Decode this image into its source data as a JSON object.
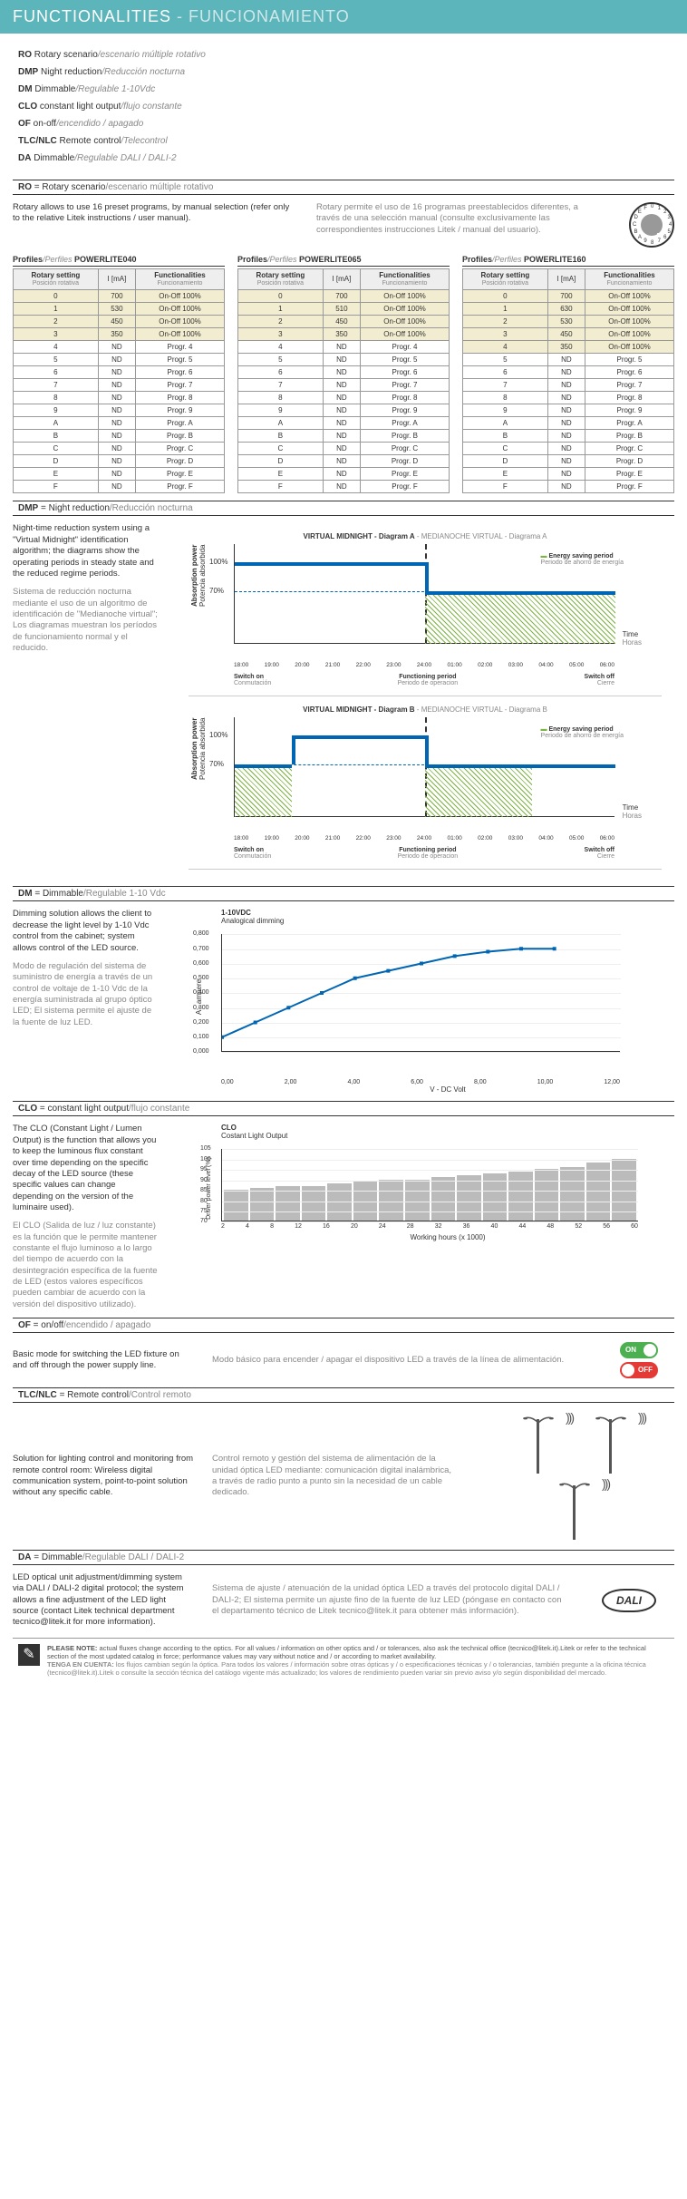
{
  "header": {
    "en": "FUNCTIONALITIES",
    "es": "- FUNCIONAMIENTO"
  },
  "funcList": [
    {
      "code": "RO",
      "en": "Rotary scenario",
      "es": "/escenario múltiple rotativo"
    },
    {
      "code": "DMP",
      "en": "Night reduction",
      "es": "/Reducción nocturna"
    },
    {
      "code": "DM",
      "en": "Dimmable",
      "es": "/Regulable 1-10Vdc"
    },
    {
      "code": "CLO",
      "en": "constant light output",
      "es": "/flujo constante"
    },
    {
      "code": "OF",
      "en": "on-off",
      "es": "/encendido / apagado"
    },
    {
      "code": "TLC/NLC",
      "en": "Remote control",
      "es": "/Telecontrol"
    },
    {
      "code": "DA",
      "en": "Dimmable",
      "es": "/Regulable DALI / DALI-2"
    }
  ],
  "sections": {
    "ro": {
      "code": "RO",
      "en": "= Rotary scenario",
      "es": "/escenario múltiple rotativo"
    },
    "dmp": {
      "code": "DMP",
      "en": "= Night reduction",
      "es": "/Reducción nocturna"
    },
    "dm": {
      "code": "DM",
      "en": "= Dimmable",
      "es": "/Regulable 1-10 Vdc"
    },
    "clo": {
      "code": "CLO",
      "en": "= constant light output",
      "es": "/flujo constante"
    },
    "of": {
      "code": "OF",
      "en": "= on/off",
      "es": "/encendido / apagado"
    },
    "tlc": {
      "code": "TLC/NLC",
      "en": "= Remote control",
      "es": "/Control remoto"
    },
    "da": {
      "code": "DA",
      "en": "= Dimmable",
      "es": "/Regulable DALI / DALI-2"
    }
  },
  "roDesc": {
    "en": "Rotary allows to use 16 preset programs, by manual selection (refer only to the relative Litek instructions / user manual).",
    "es": "Rotary permite el uso de 16 programas preestablecidos diferentes, a través de una selección manual (consulte exclusivamente las correspondientes instrucciones Litek / manual del usuario)."
  },
  "dialChars": [
    "0",
    "1",
    "2",
    "3",
    "4",
    "5",
    "6",
    "7",
    "8",
    "9",
    "A",
    "B",
    "C",
    "D",
    "E",
    "F"
  ],
  "tableHeaders": {
    "rotary": {
      "en": "Rotary setting",
      "es": "Posición rotativa"
    },
    "i": "I [mA]",
    "func": {
      "en": "Functionalities",
      "es": "Funcionamiento"
    }
  },
  "profileLabel": {
    "en": "Profiles",
    "es": "/Perfiles"
  },
  "tables": [
    {
      "name": "POWERLITE040",
      "rows": [
        [
          "0",
          "700",
          "On-Off 100%",
          true
        ],
        [
          "1",
          "530",
          "On-Off 100%",
          true
        ],
        [
          "2",
          "450",
          "On-Off 100%",
          true
        ],
        [
          "3",
          "350",
          "On-Off 100%",
          true
        ],
        [
          "4",
          "ND",
          "Progr. 4",
          false
        ],
        [
          "5",
          "ND",
          "Progr. 5",
          false
        ],
        [
          "6",
          "ND",
          "Progr. 6",
          false
        ],
        [
          "7",
          "ND",
          "Progr. 7",
          false
        ],
        [
          "8",
          "ND",
          "Progr. 8",
          false
        ],
        [
          "9",
          "ND",
          "Progr. 9",
          false
        ],
        [
          "A",
          "ND",
          "Progr. A",
          false
        ],
        [
          "B",
          "ND",
          "Progr. B",
          false
        ],
        [
          "C",
          "ND",
          "Progr. C",
          false
        ],
        [
          "D",
          "ND",
          "Progr. D",
          false
        ],
        [
          "E",
          "ND",
          "Progr. E",
          false
        ],
        [
          "F",
          "ND",
          "Progr. F",
          false
        ]
      ]
    },
    {
      "name": "POWERLITE065",
      "rows": [
        [
          "0",
          "700",
          "On-Off 100%",
          true
        ],
        [
          "1",
          "510",
          "On-Off 100%",
          true
        ],
        [
          "2",
          "450",
          "On-Off 100%",
          true
        ],
        [
          "3",
          "350",
          "On-Off 100%",
          true
        ],
        [
          "4",
          "ND",
          "Progr. 4",
          false
        ],
        [
          "5",
          "ND",
          "Progr. 5",
          false
        ],
        [
          "6",
          "ND",
          "Progr. 6",
          false
        ],
        [
          "7",
          "ND",
          "Progr. 7",
          false
        ],
        [
          "8",
          "ND",
          "Progr. 8",
          false
        ],
        [
          "9",
          "ND",
          "Progr. 9",
          false
        ],
        [
          "A",
          "ND",
          "Progr. A",
          false
        ],
        [
          "B",
          "ND",
          "Progr. B",
          false
        ],
        [
          "C",
          "ND",
          "Progr. C",
          false
        ],
        [
          "D",
          "ND",
          "Progr. D",
          false
        ],
        [
          "E",
          "ND",
          "Progr. E",
          false
        ],
        [
          "F",
          "ND",
          "Progr. F",
          false
        ]
      ]
    },
    {
      "name": "POWERLITE160",
      "rows": [
        [
          "0",
          "700",
          "On-Off 100%",
          true
        ],
        [
          "1",
          "630",
          "On-Off 100%",
          true
        ],
        [
          "2",
          "530",
          "On-Off 100%",
          true
        ],
        [
          "3",
          "450",
          "On-Off 100%",
          true
        ],
        [
          "4",
          "350",
          "On-Off 100%",
          true
        ],
        [
          "5",
          "ND",
          "Progr. 5",
          false
        ],
        [
          "6",
          "ND",
          "Progr. 6",
          false
        ],
        [
          "7",
          "ND",
          "Progr. 7",
          false
        ],
        [
          "8",
          "ND",
          "Progr. 8",
          false
        ],
        [
          "9",
          "ND",
          "Progr. 9",
          false
        ],
        [
          "A",
          "ND",
          "Progr. A",
          false
        ],
        [
          "B",
          "ND",
          "Progr. B",
          false
        ],
        [
          "C",
          "ND",
          "Progr. C",
          false
        ],
        [
          "D",
          "ND",
          "Progr. D",
          false
        ],
        [
          "E",
          "ND",
          "Progr. E",
          false
        ],
        [
          "F",
          "ND",
          "Progr. F",
          false
        ]
      ]
    }
  ],
  "dmpDesc": {
    "en": "Night-time reduction system using a \"Virtual Midnight\" identification algorithm; the diagrams show the operating periods in steady state and the reduced regime periods.",
    "es": "Sistema de reducción nocturna mediante el uso de un algoritmo de identificación de \"Medianoche virtual\"; Los diagramas muestran los períodos de funcionamiento normal y el reducido."
  },
  "vmCharts": {
    "titleA": {
      "en": "VIRTUAL MIDNIGHT - Diagram A",
      "es": " - MEDIANOCHE VIRTUAL - Diagrama A"
    },
    "titleB": {
      "en": "VIRTUAL MIDNIGHT - Diagram B",
      "es": " - MEDIANOCHE VIRTUAL - Diagrama B"
    },
    "yLabel": {
      "en": "Absorption power",
      "es": "Potencia absorbida"
    },
    "yTicks": [
      "100%",
      "70%"
    ],
    "xTicks": [
      "18:00",
      "19:00",
      "20:00",
      "21:00",
      "22:00",
      "23:00",
      "24:00",
      "01:00",
      "02:00",
      "03:00",
      "04:00",
      "05:00",
      "06:00"
    ],
    "timeLabel": {
      "en": "Time",
      "es": "Horas"
    },
    "energyLabel": {
      "en": "Energy saving period",
      "es": "Periodo de ahorro de energía"
    },
    "bottom": {
      "switchOn": {
        "en": "Switch on",
        "es": "Conmutación"
      },
      "functioning": {
        "en": "Functioning period",
        "es": "Periodo de operacion"
      },
      "switchOff": {
        "en": "Switch off",
        "es": "Cierre"
      }
    },
    "chartA": {
      "stepDownAt": 0.5,
      "highLevel": 100,
      "lowLevel": 70,
      "hatchStart": 0.5,
      "hatchEnd": 1.0
    },
    "chartB": {
      "stepUpAt": 0.15,
      "stepDownAt": 0.5,
      "hatchStart1": 0,
      "hatchEnd1": 0.15,
      "hatchStart2": 0.5,
      "hatchEnd2": 0.78
    },
    "lineColor": "#0066b3",
    "hatchColor": "#7cb342"
  },
  "dmDesc": {
    "en": "Dimming solution allows the client to decrease the light level by 1-10 Vdc control from the cabinet; system allows control of the LED source.",
    "es": "Modo de regulación del sistema de suministro de energía a través de un control de voltaje de 1-10 Vdc de la energía suministrada al grupo óptico LED; El sistema permite el ajuste de la fuente de luz LED."
  },
  "dmChart": {
    "title": "1-10VDC",
    "subtitle": "Analogical dimming",
    "xLabel": "V - DC Volt",
    "yLabel": "A - ampere",
    "yTicks": [
      "0,800",
      "0,700",
      "0,600",
      "0,500",
      "0,400",
      "0,300",
      "0,200",
      "0,100",
      "0,000"
    ],
    "xTicks": [
      "0,00",
      "2,00",
      "4,00",
      "6,00",
      "8,00",
      "10,00",
      "12,00"
    ],
    "points": [
      [
        0,
        0.1
      ],
      [
        1,
        0.2
      ],
      [
        2,
        0.3
      ],
      [
        3,
        0.4
      ],
      [
        4,
        0.5
      ],
      [
        5,
        0.55
      ],
      [
        6,
        0.6
      ],
      [
        7,
        0.65
      ],
      [
        8,
        0.68
      ],
      [
        9,
        0.7
      ],
      [
        10,
        0.7
      ]
    ],
    "xMax": 12,
    "yMax": 0.8,
    "lineColor": "#0066b3"
  },
  "cloDesc": {
    "en": "The CLO (Constant Light / Lumen Output) is the function that allows you to keep the luminous flux constant over time depending on the specific decay of the LED source (these specific values can change depending on the version of the luminaire used).",
    "es": "El CLO (Salida de luz / luz constante) es la función que le permite mantener constante el flujo luminoso a lo largo del tiempo de acuerdo con la desintegración específica de la fuente de LED (estos valores específicos pueden cambiar de acuerdo con la versión del dispositivo utilizado)."
  },
  "cloChart": {
    "title": "CLO",
    "subtitle": "Costant Light Output",
    "xLabel": "Working hours (x 1000)",
    "yLabel": "Driver power level (%)",
    "yTicks": [
      "105",
      "100",
      "95",
      "90",
      "85",
      "80",
      "75",
      "70"
    ],
    "xTicks": [
      "2",
      "4",
      "8",
      "12",
      "16",
      "20",
      "24",
      "28",
      "32",
      "36",
      "40",
      "44",
      "48",
      "52",
      "56",
      "60"
    ],
    "bars": [
      85,
      86,
      87,
      87,
      88,
      89,
      90,
      90,
      91,
      92,
      93,
      94,
      95,
      96,
      98,
      100
    ],
    "yMin": 70,
    "yMax": 105,
    "barColor": "#bbb"
  },
  "ofDesc": {
    "en": "Basic mode for switching the LED fixture on and off through the power supply line.",
    "es": "Modo básico para encender / apagar el dispositivo LED a través de la línea de alimentación."
  },
  "ofToggles": {
    "on": "ON",
    "off": "OFF"
  },
  "tlcDesc": {
    "en": "Solution for lighting control and monitoring from remote control room:\nWireless digital communication system, point-to-point solution without any specific cable.",
    "es": "Control remoto y gestión del sistema de alimentación de la unidad óptica LED mediante: comunicación digital inalámbrica, a través de radio punto a punto sin la necesidad de un cable dedicado."
  },
  "daDesc": {
    "en": "LED optical unit adjustment/dimming system via DALI / DALI-2 digital protocol; the system allows a fine adjustment of the LED light source (contact Litek technical department tecnico@litek.it for more information).",
    "es": "Sistema de ajuste / atenuación de la unidad óptica LED a través del protocolo digital DALI / DALI-2; El sistema permite un ajuste fino de la fuente de luz LED (póngase en contacto con el departamento técnico de Litek tecnico@litek.it para obtener más información)."
  },
  "daliBadge": "DALI",
  "note": {
    "title": "PLEASE NOTE:",
    "en": "actual fluxes change according to the optics. For all values / information on other optics and / or tolerances, also ask the technical office (tecnico@litek.it).Litek or refer to the technical section of the most updated catalog in force; performance values may vary without notice and / or according to market availability.",
    "esTitle": "TENGA EN CUENTA:",
    "es": "los flujos cambian según la óptica. Para todos los valores / información sobre otras ópticas y / o especificaciones técnicas y / o tolerancias, también pregunte a la oficina técnica (tecnico@litek.it).Litek o consulte la sección técnica del catálogo vigente más actualizado; los valores de rendimiento pueden variar sin previo aviso y/o según disponibilidad del mercado."
  }
}
